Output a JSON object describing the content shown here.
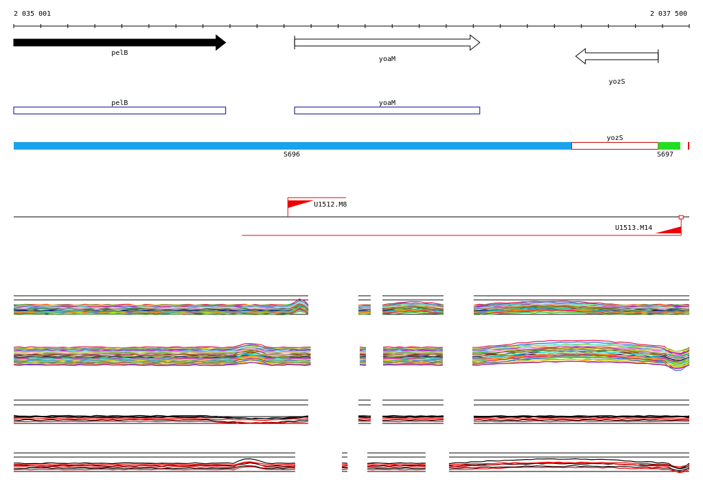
{
  "ruler": {
    "start_label": "2 035 001",
    "end_label": "2 037 500",
    "start": 2035001,
    "end": 2037500
  },
  "genes": [
    {
      "name": "pelB",
      "start": 2035001,
      "end": 2035785,
      "strand": "+",
      "filled": true
    },
    {
      "name": "yoaM",
      "start": 2036040,
      "end": 2036725,
      "strand": "+",
      "filled": false
    },
    {
      "name": "yozS",
      "start": 2037080,
      "end": 2037385,
      "strand": "-",
      "filled": false
    }
  ],
  "cds": [
    {
      "name": "pelB",
      "start": 2035001,
      "end": 2035785
    },
    {
      "name": "yoaM",
      "start": 2036040,
      "end": 2036725
    }
  ],
  "segments": [
    {
      "name": "S696",
      "start": 2035001,
      "end": 2037065,
      "color": "#1aa3ec"
    },
    {
      "name": "yozS",
      "start": 2037065,
      "end": 2037385,
      "color": "#ffffff",
      "outline": "#cc0000"
    },
    {
      "name": "S697",
      "start": 2037385,
      "end": 2037467,
      "color": "#22dd22"
    }
  ],
  "segment_gene_label": "yozS",
  "transcripts": [
    {
      "name": "U1512.M8",
      "start": 2036015,
      "end": 2036230,
      "strand": "+"
    },
    {
      "name": "U1513.M14",
      "start": 2035845,
      "end": 2037470,
      "strand": "-"
    }
  ],
  "colors": {
    "track_red": "#ee0000",
    "segment_blue": "#1aa3ec",
    "segment_green": "#22dd22",
    "cds_outline": "#00008b"
  }
}
